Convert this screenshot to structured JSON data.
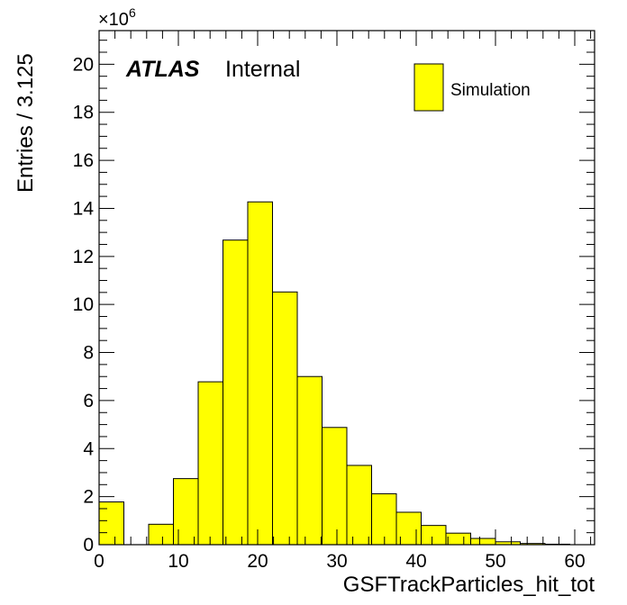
{
  "chart_data": {
    "type": "bar",
    "histogram": true,
    "x_bin_width": 3.125,
    "x_bin_low_edges": [
      0,
      3.125,
      6.25,
      9.375,
      12.5,
      15.625,
      18.75,
      21.875,
      25,
      28.125,
      31.25,
      34.375,
      37.5,
      40.625,
      43.75,
      46.875,
      50,
      53.125,
      56.25,
      59.375
    ],
    "values": [
      1.78,
      0,
      0.85,
      2.75,
      6.78,
      12.68,
      14.27,
      10.52,
      7.0,
      4.88,
      3.3,
      2.12,
      1.35,
      0.8,
      0.48,
      0.26,
      0.12,
      0.05,
      0.02,
      0
    ],
    "xlim": [
      0,
      62.5
    ],
    "ylim": [
      0,
      21.4
    ],
    "xticks": [
      "0",
      "10",
      "20",
      "30",
      "40",
      "50",
      "60"
    ],
    "yticks": [
      "0",
      "2",
      "4",
      "6",
      "8",
      "10",
      "12",
      "14",
      "16",
      "18",
      "20"
    ],
    "xlabel": "GSFTrackParticles_hit_tot",
    "ylabel": "Entries / 3.125",
    "y_multiplier": "×10",
    "y_multiplier_exp": "6",
    "legend": [
      {
        "name": "Simulation",
        "color": "#ffff00"
      }
    ],
    "legend_position": "top-right",
    "series_color": "#ffff00",
    "outline_color": "#000000",
    "label_atlas": "ATLAS",
    "label_internal": "Internal"
  }
}
